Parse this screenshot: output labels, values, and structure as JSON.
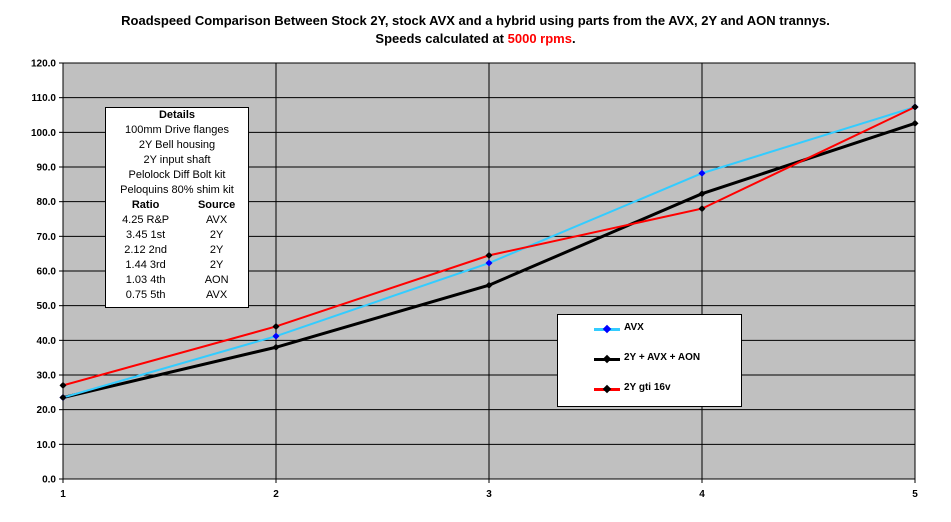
{
  "title": {
    "line1": "Roadspeed Comparison Between Stock 2Y, stock AVX and a hybrid using parts from the AVX, 2Y and AON trannys.",
    "line2_prefix": "Speeds calculated at ",
    "line2_rpm": "5000 rpms",
    "line2_suffix": "."
  },
  "details": {
    "heading": "Details",
    "lines": [
      "100mm Drive flanges",
      "2Y Bell housing",
      "2Y input shaft",
      "Pelolock Diff Bolt kit",
      "Peloquins 80% shim kit"
    ],
    "table_headers": [
      "Ratio",
      "Source"
    ],
    "rows": [
      [
        "4.25 R&P",
        "AVX"
      ],
      [
        "3.45 1st",
        "2Y"
      ],
      [
        "2.12 2nd",
        "2Y"
      ],
      [
        "1.44 3rd",
        "2Y"
      ],
      [
        "1.03 4th",
        "AON"
      ],
      [
        "0.75 5th",
        "AVX"
      ]
    ]
  },
  "colors": {
    "plot_bg": "#c0c0c0",
    "gridline": "#000000",
    "avx": "#33ccff",
    "hybrid": "#000000",
    "gti": "#ff0000",
    "marker_avx": "#0000ff",
    "marker_other": "#000000"
  },
  "chart_data": {
    "type": "line",
    "title": "Roadspeed Comparison Between Stock 2Y, stock AVX and a hybrid using parts from the AVX, 2Y and AON trannys. Speeds calculated at 5000 rpms.",
    "x": [
      1,
      2,
      3,
      4,
      5
    ],
    "x_tick_labels": [
      "1",
      "2",
      "3",
      "4",
      "5"
    ],
    "xlim": [
      1,
      5
    ],
    "ylim": [
      0,
      120
    ],
    "y_tick_labels": [
      "0.0",
      "10.0",
      "20.0",
      "30.0",
      "40.0",
      "50.0",
      "60.0",
      "70.0",
      "80.0",
      "90.0",
      "100.0",
      "110.0",
      "120.0"
    ],
    "grid": true,
    "legend": "lower-right",
    "series": [
      {
        "name": "AVX",
        "values": [
          23.5,
          41.2,
          62.3,
          88.2,
          107.3
        ]
      },
      {
        "name": "2Y + AVX + AON",
        "values": [
          23.5,
          38.0,
          55.9,
          82.3,
          102.6
        ]
      },
      {
        "name": "2Y gti 16v",
        "values": [
          27.0,
          44.0,
          64.5,
          78.0,
          107.3
        ]
      }
    ]
  }
}
